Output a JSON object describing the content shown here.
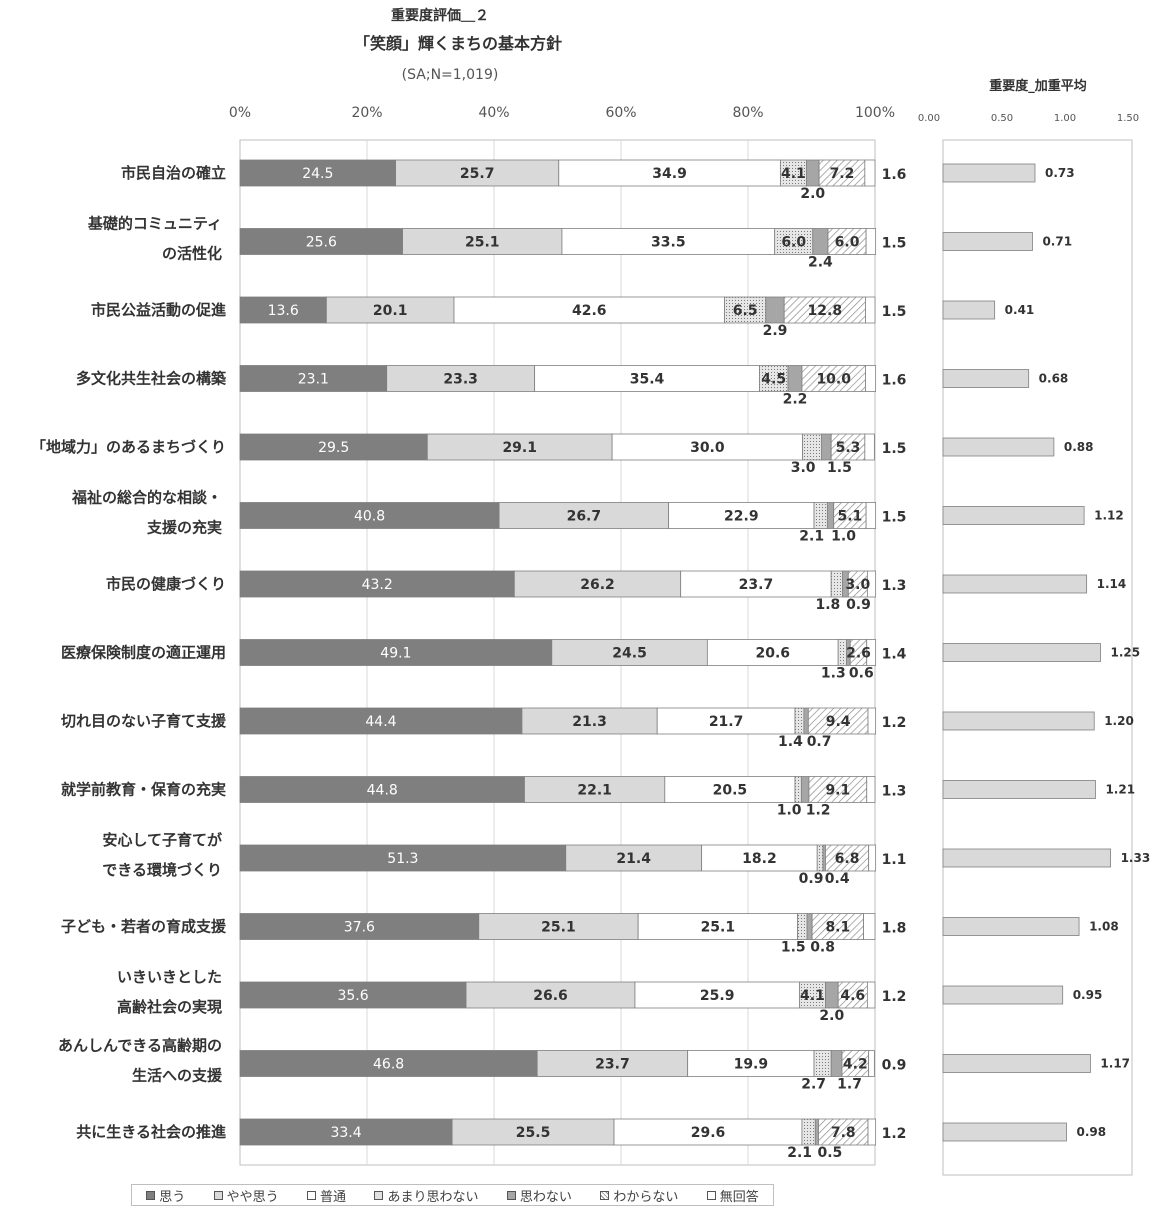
{
  "chart_data": [
    {
      "type": "bar",
      "stacked": true,
      "orientation": "horizontal",
      "title": "重要度評価＿２",
      "subtitle": "「笑顔」輝くまちの基本方針",
      "subtitle2": "(SA;N=1,019)",
      "xlim": [
        0,
        100
      ],
      "xticks": [
        "0%",
        "20%",
        "40%",
        "60%",
        "80%",
        "100%"
      ],
      "grid": true,
      "legend_position": "bottom",
      "categories": [
        [
          "市民自治の確立"
        ],
        [
          "基礎的コミュニティ",
          "の活性化"
        ],
        [
          "市民公益活動の促進"
        ],
        [
          "多文化共生社会の構築"
        ],
        [
          "「地域力」のあるまちづくり"
        ],
        [
          "福祉の総合的な相談・",
          "支援の充実"
        ],
        [
          "市民の健康づくり"
        ],
        [
          "医療保険制度の適正運用"
        ],
        [
          "切れ目のない子育て支援"
        ],
        [
          "就学前教育・保育の充実"
        ],
        [
          "安心して子育てが",
          "できる環境づくり"
        ],
        [
          "子ども・若者の育成支援"
        ],
        [
          "いきいきとした",
          "高齢社会の実現"
        ],
        [
          "あんしんできる高齢期の",
          "生活への支援"
        ],
        [
          "共に生きる社会の推進"
        ]
      ],
      "series": [
        {
          "name": "思う",
          "color": "#7f7f7f",
          "values": [
            24.5,
            25.6,
            13.6,
            23.1,
            29.5,
            40.8,
            43.2,
            49.1,
            44.4,
            44.8,
            51.3,
            37.6,
            35.6,
            46.8,
            33.4
          ]
        },
        {
          "name": "やや思う",
          "color": "#d9d9d9",
          "values": [
            25.7,
            25.1,
            20.1,
            23.3,
            29.1,
            26.7,
            26.2,
            24.5,
            21.3,
            22.1,
            21.4,
            25.1,
            26.6,
            23.7,
            25.5
          ]
        },
        {
          "name": "普通",
          "color": "#ffffff",
          "values": [
            34.9,
            33.5,
            42.6,
            35.4,
            30.0,
            22.9,
            23.7,
            20.6,
            21.7,
            20.5,
            18.2,
            25.1,
            25.9,
            19.9,
            29.6
          ]
        },
        {
          "name": "あまり思わない",
          "color": "#e0e0e0",
          "values": [
            4.1,
            6.0,
            6.5,
            4.5,
            3.0,
            2.1,
            1.8,
            1.3,
            1.4,
            1.0,
            0.9,
            1.5,
            4.1,
            2.7,
            2.1
          ]
        },
        {
          "name": "思わない",
          "color": "#a6a6a6",
          "values": [
            2.0,
            2.4,
            2.9,
            2.2,
            1.5,
            1.0,
            0.9,
            0.6,
            0.7,
            1.2,
            0.4,
            0.8,
            2.0,
            1.7,
            0.5
          ]
        },
        {
          "name": "わからない",
          "color": "#f2f2f2",
          "values": [
            7.2,
            6.0,
            12.8,
            10.0,
            5.3,
            5.1,
            3.0,
            2.6,
            9.4,
            9.1,
            6.8,
            8.1,
            4.6,
            4.2,
            7.8
          ]
        },
        {
          "name": "無回答",
          "color": "#ffffff",
          "values": [
            1.6,
            1.5,
            1.5,
            1.6,
            1.5,
            1.5,
            1.3,
            1.4,
            1.2,
            1.3,
            1.1,
            1.8,
            1.2,
            0.9,
            1.2
          ]
        }
      ]
    },
    {
      "type": "bar",
      "orientation": "horizontal",
      "title": "重要度_加重平均",
      "xlim": [
        0,
        1.5
      ],
      "xticks": [
        "0.00",
        "0.50",
        "1.00",
        "1.50"
      ],
      "inner_ticks": [
        "0",
        "0.5",
        "1",
        "1.5"
      ],
      "color": "#d9d9d9",
      "values": [
        0.73,
        0.71,
        0.41,
        0.68,
        0.88,
        1.12,
        1.14,
        1.25,
        1.2,
        1.21,
        1.33,
        1.08,
        0.95,
        1.17,
        0.98
      ]
    }
  ]
}
